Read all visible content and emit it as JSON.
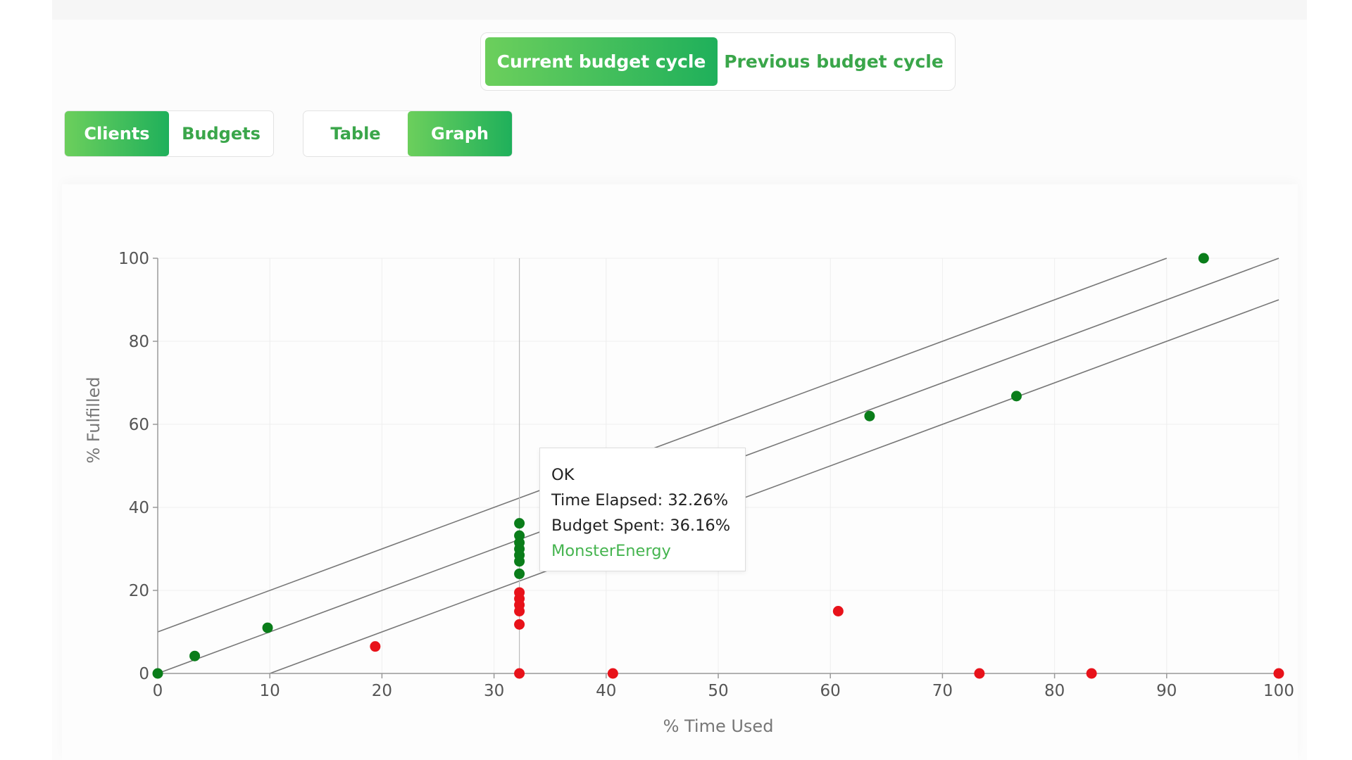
{
  "cycle_toggle": {
    "current_label": "Current budget cycle",
    "previous_label": "Previous budget cycle",
    "active": "current"
  },
  "view_toggle": {
    "clients_label": "Clients",
    "budgets_label": "Budgets",
    "active": "clients"
  },
  "mode_toggle": {
    "table_label": "Table",
    "graph_label": "Graph",
    "active": "graph"
  },
  "colors": {
    "accent": "#3aa64a",
    "ok_point": "#0a7d1a",
    "over_point": "#e8121a",
    "reference_line": "#777777"
  },
  "chart_data": {
    "type": "scatter",
    "title": "",
    "xlabel": "% Time Used",
    "ylabel": "% Fulfilled",
    "xlim": [
      0,
      100
    ],
    "ylim": [
      0,
      100
    ],
    "x_ticks": [
      0,
      10,
      20,
      30,
      40,
      50,
      60,
      70,
      80,
      90,
      100
    ],
    "y_ticks": [
      0,
      20,
      40,
      60,
      80,
      100
    ],
    "grid": true,
    "reference_lines": [
      {
        "from": [
          0,
          10
        ],
        "to": [
          90,
          100
        ]
      },
      {
        "from": [
          0,
          0
        ],
        "to": [
          100,
          100
        ]
      },
      {
        "from": [
          10,
          0
        ],
        "to": [
          100,
          90
        ]
      }
    ],
    "hover_crosshair_x": 32.26,
    "series": [
      {
        "status": "ok",
        "color": "#0a7d1a",
        "points": [
          [
            0,
            0
          ],
          [
            3.3,
            4.2
          ],
          [
            9.8,
            11
          ],
          [
            32.26,
            24
          ],
          [
            32.26,
            27
          ],
          [
            32.26,
            28.5
          ],
          [
            32.26,
            30
          ],
          [
            32.26,
            31.5
          ],
          [
            32.26,
            33.2
          ],
          [
            32.26,
            36.16
          ],
          [
            63.5,
            62
          ],
          [
            76.6,
            66.8
          ],
          [
            93.3,
            100
          ]
        ]
      },
      {
        "status": "over",
        "color": "#e8121a",
        "points": [
          [
            19.4,
            6.5
          ],
          [
            32.26,
            0
          ],
          [
            32.26,
            11.8
          ],
          [
            32.26,
            15
          ],
          [
            32.26,
            16.5
          ],
          [
            32.26,
            18
          ],
          [
            32.26,
            19.5
          ],
          [
            40.6,
            0
          ],
          [
            60.7,
            15
          ],
          [
            73.3,
            0
          ],
          [
            83.3,
            0
          ],
          [
            100,
            0
          ]
        ]
      }
    ]
  },
  "tooltip": {
    "status": "OK",
    "time_elapsed": "Time Elapsed: 32.26%",
    "budget_spent": "Budget Spent: 36.16%",
    "client": "MonsterEnergy"
  }
}
